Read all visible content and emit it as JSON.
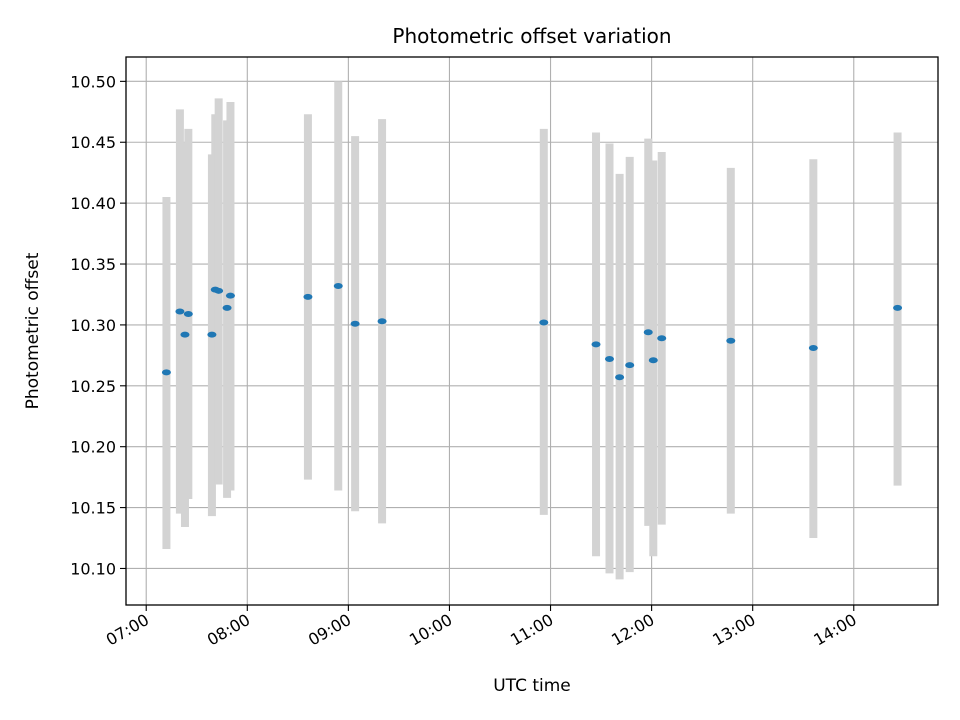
{
  "chart_data": {
    "type": "scatter",
    "title": "Photometric offset variation",
    "xlabel": "UTC time",
    "ylabel": "Photometric offset",
    "xlim": [
      "06:48",
      "14:50"
    ],
    "ylim": [
      10.07,
      10.52
    ],
    "grid": true,
    "x_ticks": [
      "07:00",
      "08:00",
      "09:00",
      "10:00",
      "11:00",
      "12:00",
      "13:00",
      "14:00"
    ],
    "y_ticks": [
      "10.10",
      "10.15",
      "10.20",
      "10.25",
      "10.30",
      "10.35",
      "10.40",
      "10.45",
      "10.50"
    ],
    "colors": {
      "marker": "#1f77b4",
      "errorbar": "#d3d3d3",
      "grid": "#b0b0b0"
    },
    "series": [
      {
        "points": [
          {
            "x": "07:12",
            "y": 10.261,
            "y_low": 10.116,
            "y_high": 10.405
          },
          {
            "x": "07:20",
            "y": 10.311,
            "y_low": 10.145,
            "y_high": 10.477
          },
          {
            "x": "07:23",
            "y": 10.292,
            "y_low": 10.134,
            "y_high": 10.45
          },
          {
            "x": "07:25",
            "y": 10.309,
            "y_low": 10.157,
            "y_high": 10.461
          },
          {
            "x": "07:39",
            "y": 10.292,
            "y_low": 10.143,
            "y_high": 10.44
          },
          {
            "x": "07:41",
            "y": 10.329,
            "y_low": 10.169,
            "y_high": 10.473
          },
          {
            "x": "07:43",
            "y": 10.328,
            "y_low": 10.169,
            "y_high": 10.486
          },
          {
            "x": "07:48",
            "y": 10.314,
            "y_low": 10.158,
            "y_high": 10.468
          },
          {
            "x": "07:50",
            "y": 10.324,
            "y_low": 10.164,
            "y_high": 10.483
          },
          {
            "x": "08:36",
            "y": 10.323,
            "y_low": 10.173,
            "y_high": 10.473
          },
          {
            "x": "08:54",
            "y": 10.332,
            "y_low": 10.164,
            "y_high": 10.5
          },
          {
            "x": "09:04",
            "y": 10.301,
            "y_low": 10.147,
            "y_high": 10.455
          },
          {
            "x": "09:20",
            "y": 10.303,
            "y_low": 10.137,
            "y_high": 10.469
          },
          {
            "x": "10:56",
            "y": 10.302,
            "y_low": 10.144,
            "y_high": 10.461
          },
          {
            "x": "11:27",
            "y": 10.284,
            "y_low": 10.11,
            "y_high": 10.458
          },
          {
            "x": "11:35",
            "y": 10.272,
            "y_low": 10.096,
            "y_high": 10.449
          },
          {
            "x": "11:41",
            "y": 10.257,
            "y_low": 10.091,
            "y_high": 10.424
          },
          {
            "x": "11:47",
            "y": 10.267,
            "y_low": 10.097,
            "y_high": 10.438
          },
          {
            "x": "11:58",
            "y": 10.294,
            "y_low": 10.135,
            "y_high": 10.453
          },
          {
            "x": "12:01",
            "y": 10.271,
            "y_low": 10.11,
            "y_high": 10.435
          },
          {
            "x": "12:06",
            "y": 10.289,
            "y_low": 10.136,
            "y_high": 10.442
          },
          {
            "x": "12:47",
            "y": 10.287,
            "y_low": 10.145,
            "y_high": 10.429
          },
          {
            "x": "13:36",
            "y": 10.281,
            "y_low": 10.125,
            "y_high": 10.436
          },
          {
            "x": "14:26",
            "y": 10.314,
            "y_low": 10.168,
            "y_high": 10.458
          }
        ]
      }
    ]
  }
}
